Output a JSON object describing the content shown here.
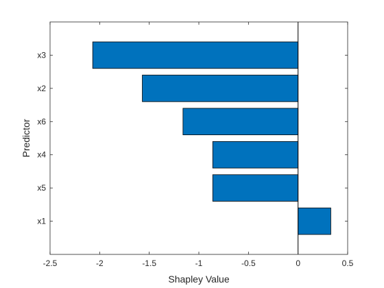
{
  "chart_data": {
    "type": "bar",
    "orientation": "horizontal",
    "xlabel": "Shapley Value",
    "ylabel": "Predictor",
    "xlim": [
      -2.5,
      0.5
    ],
    "xticks": [
      -2.5,
      -2,
      -1.5,
      -1,
      -0.5,
      0,
      0.5
    ],
    "xtick_labels": [
      "-2.5",
      "-2",
      "-1.5",
      "-1",
      "-0.5",
      "0",
      "0.5"
    ],
    "categories": [
      "x3",
      "x2",
      "x6",
      "x4",
      "x5",
      "x1"
    ],
    "values": [
      -2.07,
      -1.57,
      -1.16,
      -0.86,
      -0.86,
      0.33
    ],
    "bar_color": "#0072BD",
    "bar_edge_color": "#000000",
    "grid": false,
    "legend": "none"
  }
}
